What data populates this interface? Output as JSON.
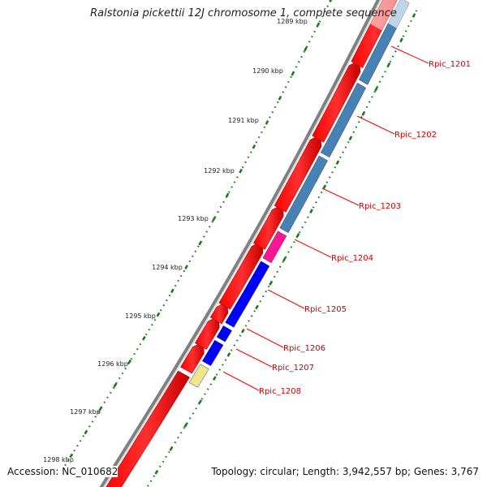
{
  "title": "Ralstonia pickettii 12J chromosome 1, complete sequence",
  "footer": {
    "accession_label": "Accession:",
    "accession": "NC_010682",
    "summary": "Topology: circular; Length: 3,942,557 bp; Genes: 3,767"
  },
  "scale": {
    "tick_labels": [
      "1289 kbp",
      "1290 kbp",
      "1291 kbp",
      "1292 kbp",
      "1293 kbp",
      "1294 kbp",
      "1295 kbp",
      "1296 kbp",
      "1297 kbp",
      "1298 kbp"
    ]
  },
  "genes": [
    {
      "label": "Rpic_1201",
      "color": "#4682b4"
    },
    {
      "label": "Rpic_1202",
      "color": "#4682b4"
    },
    {
      "label": "Rpic_1203",
      "color": "#4682b4"
    },
    {
      "label": "Rpic_1204",
      "color": "#ff1493"
    },
    {
      "label": "Rpic_1205",
      "color": "#0000ff"
    },
    {
      "label": "Rpic_1206",
      "color": "#0000ff"
    },
    {
      "label": "Rpic_1207",
      "color": "#0000ff"
    },
    {
      "label": "Rpic_1208",
      "color": "#f0e68c"
    }
  ],
  "colors": {
    "cds": "#ff0000",
    "backbone": "#808080",
    "ticks": "#1a7a1a",
    "label_text": "#cc0000",
    "leader_line": "#ff0000"
  }
}
